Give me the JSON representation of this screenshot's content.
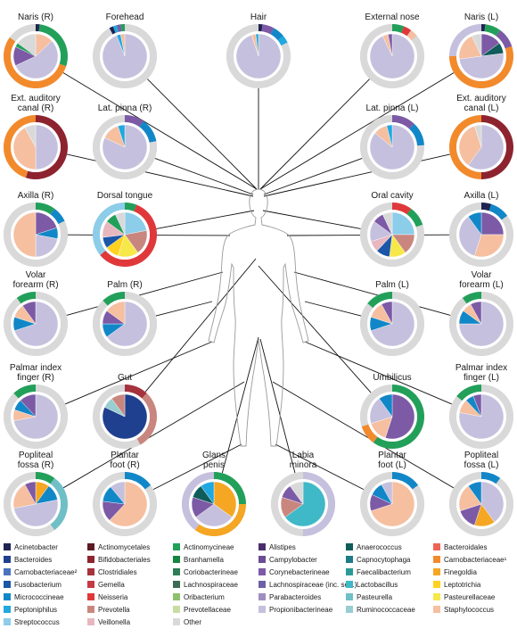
{
  "palette": {
    "Acinetobacter": "#1f2450",
    "Bacteroides": "#1f3f8f",
    "Carnobacteriaceae2": "#4a72c0",
    "Fusobacterium": "#1b56a8",
    "Micrococcineae": "#1287c8",
    "Peptoniphilus": "#20a8e0",
    "Streptococcus": "#8ccde9",
    "Actinomycetales": "#5e1a24",
    "Bifidobacteriales": "#8e2330",
    "Clostridiales": "#a5323d",
    "Gemella": "#c63a45",
    "Neisseria": "#e0383a",
    "Prevotella": "#c9867f",
    "Veillonella": "#e7b7c0",
    "Actinomycineae": "#22a05a",
    "Branhamella": "#15853f",
    "Coriobacterineae": "#2e7d55",
    "Lachnospiraceae": "#3d6a52",
    "Oribacterium": "#8fc06d",
    "Prevotellaceae": "#c9dca2",
    "Other": "#d9d9d9",
    "Alistipes": "#4b2d6e",
    "Campylobacter": "#6b4c93",
    "Corynebacterineae": "#7c5aa6",
    "Lachnospiraceae_inc_sed": "#6f5fa8",
    "Parabacteroides": "#9f8dc2",
    "Propionibacterineae": "#c5c0dd",
    "Anaerococcus": "#0f5c5a",
    "Capnocytophaga": "#1f7b87",
    "Faecalibacterium": "#2b9a96",
    "Lactobacillus": "#3fb8c7",
    "Pasteurella": "#6fbfc7",
    "Ruminococcaceae": "#98cdd2",
    "Bacteroidales": "#ee6454",
    "Carnobacteriaceae1": "#f28a2c",
    "Finegoldia": "#f5a623",
    "Leptotrichia": "#ffd21f",
    "Pasteurellaceae": "#f7e84a",
    "Staphylococcus": "#f5bfa0"
  },
  "legend": {
    "columns": [
      [
        "Acinetobacter",
        "Bacteroides",
        "Carnobacteriaceae²",
        "Fusobacterium",
        "Micrococcineae",
        "Peptoniphilus",
        "Streptococcus"
      ],
      [
        "Actinomycetales",
        "Bifidobacteriales",
        "Clostridiales",
        "Gemella",
        "Neisseria",
        "Prevotella",
        "Veillonella"
      ],
      [
        "Actinomycineae",
        "Branhamella",
        "Coriobacterineae",
        "Lachnospiraceae",
        "Oribacterium",
        "Prevotellaceae",
        "Other"
      ],
      [
        "Alistipes",
        "Campylobacter",
        "Corynebacterineae",
        "Lachnospiraceae (inc. sed.)",
        "Parabacteroides",
        "Propionibacterineae"
      ],
      [
        "Anaerococcus",
        "Capnocytophaga",
        "Faecalibacterium",
        "Lactobacillus",
        "Pasteurella",
        "Ruminococcaceae"
      ],
      [
        "Bacteroidales",
        "Carnobacteriaceae¹",
        "Finegoldia",
        "Leptotrichia",
        "Pasteurellaceae",
        "Staphylococcus"
      ]
    ],
    "color_keys": [
      [
        "Acinetobacter",
        "Bacteroides",
        "Carnobacteriaceae2",
        "Fusobacterium",
        "Micrococcineae",
        "Peptoniphilus",
        "Streptococcus"
      ],
      [
        "Actinomycetales",
        "Bifidobacteriales",
        "Clostridiales",
        "Gemella",
        "Neisseria",
        "Prevotella",
        "Veillonella"
      ],
      [
        "Actinomycineae",
        "Branhamella",
        "Coriobacterineae",
        "Lachnospiraceae",
        "Oribacterium",
        "Prevotellaceae",
        "Other"
      ],
      [
        "Alistipes",
        "Campylobacter",
        "Corynebacterineae",
        "Lachnospiraceae_inc_sed",
        "Parabacteroides",
        "Propionibacterineae"
      ],
      [
        "Anaerococcus",
        "Capnocytophaga",
        "Faecalibacterium",
        "Lactobacillus",
        "Pasteurella",
        "Ruminococcaceae"
      ],
      [
        "Bacteroidales",
        "Carnobacteriaceae1",
        "Finegoldia",
        "Leptotrichia",
        "Pasteurellaceae",
        "Staphylococcus"
      ]
    ]
  },
  "sites": [
    {
      "label": "Naris (R)",
      "pie": [
        [
          "Staphylococcus",
          0.13
        ],
        [
          "Propionibacterineae",
          0.55
        ],
        [
          "Corynebacterineae",
          0.14
        ],
        [
          "Actinomycineae",
          0.03
        ],
        [
          "Other",
          0.15
        ]
      ],
      "ring": [
        [
          "Acinetobacter",
          0.02
        ],
        [
          "Actinomycineae",
          0.28
        ],
        [
          "Carnobacteriaceae1",
          0.55
        ],
        [
          "Other",
          0.15
        ]
      ]
    },
    {
      "label": "Forehead",
      "pie": [
        [
          "Propionibacterineae",
          0.94
        ],
        [
          "Peptoniphilus",
          0.03
        ],
        [
          "Staphylococcus",
          0.03
        ]
      ],
      "ring": [
        [
          "Other",
          0.92
        ],
        [
          "Acinetobacter",
          0.02
        ],
        [
          "Peptoniphilus",
          0.02
        ],
        [
          "Corynebacterineae",
          0.02
        ],
        [
          "Actinomycineae",
          0.02
        ]
      ]
    },
    {
      "label": "Hair",
      "pie": [
        [
          "Propionibacterineae",
          0.95
        ],
        [
          "Staphylococcus",
          0.03
        ],
        [
          "Peptoniphilus",
          0.02
        ]
      ],
      "ring": [
        [
          "Acinetobacter",
          0.02
        ],
        [
          "Corynebacterineae",
          0.06
        ],
        [
          "Micrococcineae",
          0.06
        ],
        [
          "Peptoniphilus",
          0.04
        ],
        [
          "Other",
          0.82
        ]
      ]
    },
    {
      "label": "External nose",
      "pie": [
        [
          "Propionibacterineae",
          0.93
        ],
        [
          "Staphylococcus",
          0.04
        ],
        [
          "Corynebacterineae",
          0.03
        ]
      ],
      "ring": [
        [
          "Actinomycineae",
          0.06
        ],
        [
          "Neisseria",
          0.04
        ],
        [
          "Staphylococcus",
          0.04
        ],
        [
          "Other",
          0.86
        ]
      ]
    },
    {
      "label": "Naris (L)",
      "pie": [
        [
          "Corynebacterineae",
          0.15
        ],
        [
          "Anaerococcus",
          0.08
        ],
        [
          "Propionibacterineae",
          0.5
        ],
        [
          "Staphylococcus",
          0.2
        ],
        [
          "Other",
          0.07
        ]
      ],
      "ring": [
        [
          "Acinetobacter",
          0.02
        ],
        [
          "Actinomycineae",
          0.08
        ],
        [
          "Corynebacterineae",
          0.1
        ],
        [
          "Carnobacteriaceae1",
          0.55
        ],
        [
          "Propionibacterineae",
          0.25
        ]
      ]
    },
    {
      "label": "Ext. auditory canal (R)",
      "pie": [
        [
          "Propionibacterineae",
          0.5
        ],
        [
          "Staphylococcus",
          0.42
        ],
        [
          "Other",
          0.08
        ]
      ],
      "ring": [
        [
          "Bifidobacteriales",
          0.55
        ],
        [
          "Carnobacteriaceae1",
          0.45
        ]
      ]
    },
    {
      "label": "Lat. pinna (R)",
      "pie": [
        [
          "Propionibacterineae",
          0.82
        ],
        [
          "Staphylococcus",
          0.13
        ],
        [
          "Peptoniphilus",
          0.05
        ]
      ],
      "ring": [
        [
          "Corynebacterineae",
          0.1
        ],
        [
          "Micrococcineae",
          0.12
        ],
        [
          "Other",
          0.78
        ]
      ]
    },
    {
      "label": "Lat. pinna (L)",
      "pie": [
        [
          "Propionibacterineae",
          0.86
        ],
        [
          "Staphylococcus",
          0.1
        ],
        [
          "Peptoniphilus",
          0.04
        ]
      ],
      "ring": [
        [
          "Corynebacterineae",
          0.12
        ],
        [
          "Micrococcineae",
          0.12
        ],
        [
          "Other",
          0.76
        ]
      ]
    },
    {
      "label": "Ext. auditory canal (L)",
      "pie": [
        [
          "Propionibacterineae",
          0.6
        ],
        [
          "Staphylococcus",
          0.35
        ],
        [
          "Other",
          0.05
        ]
      ],
      "ring": [
        [
          "Bifidobacteriales",
          0.5
        ],
        [
          "Carnobacteriaceae1",
          0.5
        ]
      ]
    },
    {
      "label": "Axilla (R)",
      "pie": [
        [
          "Corynebacterineae",
          0.2
        ],
        [
          "Micrococcineae",
          0.08
        ],
        [
          "Propionibacterineae",
          0.22
        ],
        [
          "Staphylococcus",
          0.5
        ]
      ],
      "ring": [
        [
          "Actinomycineae",
          0.1
        ],
        [
          "Micrococcineae",
          0.08
        ],
        [
          "Other",
          0.82
        ]
      ]
    },
    {
      "label": "Dorsal tongue",
      "pie": [
        [
          "Streptococcus",
          0.22
        ],
        [
          "Prevotella",
          0.18
        ],
        [
          "Pasteurellaceae",
          0.15
        ],
        [
          "Leptotrichia",
          0.1
        ],
        [
          "Fusobacterium",
          0.08
        ],
        [
          "Veillonella",
          0.12
        ],
        [
          "Actinomycineae",
          0.08
        ],
        [
          "Other",
          0.07
        ]
      ],
      "ring": [
        [
          "Actinomycineae",
          0.06
        ],
        [
          "Neisseria",
          0.58
        ],
        [
          "Streptococcus",
          0.36
        ]
      ]
    },
    {
      "label": "Oral cavity",
      "pie": [
        [
          "Streptococcus",
          0.25
        ],
        [
          "Prevotella",
          0.15
        ],
        [
          "Pasteurellaceae",
          0.12
        ],
        [
          "Fusobacterium",
          0.1
        ],
        [
          "Veillonella",
          0.08
        ],
        [
          "Propionibacterineae",
          0.15
        ],
        [
          "Corynebacterineae",
          0.08
        ],
        [
          "Other",
          0.07
        ]
      ],
      "ring": [
        [
          "Neisseria",
          0.1
        ],
        [
          "Actinomycineae",
          0.1
        ],
        [
          "Other",
          0.8
        ]
      ]
    },
    {
      "label": "Axilla (L)",
      "pie": [
        [
          "Corynebacterineae",
          0.25
        ],
        [
          "Staphylococcus",
          0.3
        ],
        [
          "Propionibacterineae",
          0.35
        ],
        [
          "Micrococcineae",
          0.1
        ]
      ],
      "ring": [
        [
          "Acinetobacter",
          0.05
        ],
        [
          "Micrococcineae",
          0.1
        ],
        [
          "Other",
          0.85
        ]
      ]
    },
    {
      "label": "Volar forearm (R)",
      "pie": [
        [
          "Propionibacterineae",
          0.7
        ],
        [
          "Micrococcineae",
          0.1
        ],
        [
          "Staphylococcus",
          0.1
        ],
        [
          "Corynebacterineae",
          0.1
        ]
      ],
      "ring": [
        [
          "Other",
          0.9
        ],
        [
          "Actinomycineae",
          0.1
        ]
      ]
    },
    {
      "label": "Palm (R)",
      "pie": [
        [
          "Propionibacterineae",
          0.65
        ],
        [
          "Micrococcineae",
          0.1
        ],
        [
          "Corynebacterineae",
          0.1
        ],
        [
          "Staphylococcus",
          0.15
        ]
      ],
      "ring": [
        [
          "Other",
          0.88
        ],
        [
          "Actinomycineae",
          0.12
        ]
      ]
    },
    {
      "label": "Palm (L)",
      "pie": [
        [
          "Propionibacterineae",
          0.7
        ],
        [
          "Micrococcineae",
          0.1
        ],
        [
          "Staphylococcus",
          0.12
        ],
        [
          "Corynebacterineae",
          0.08
        ]
      ],
      "ring": [
        [
          "Other",
          0.86
        ],
        [
          "Actinomycineae",
          0.14
        ]
      ]
    },
    {
      "label": "Volar forearm (L)",
      "pie": [
        [
          "Propionibacterineae",
          0.75
        ],
        [
          "Micrococcineae",
          0.1
        ],
        [
          "Staphylococcus",
          0.07
        ],
        [
          "Corynebacterineae",
          0.08
        ]
      ],
      "ring": [
        [
          "Other",
          0.9
        ],
        [
          "Actinomycineae",
          0.1
        ]
      ]
    },
    {
      "label": "Palmar index finger (R)",
      "pie": [
        [
          "Propionibacterineae",
          0.72
        ],
        [
          "Staphylococcus",
          0.08
        ],
        [
          "Micrococcineae",
          0.08
        ],
        [
          "Corynebacterineae",
          0.12
        ]
      ],
      "ring": [
        [
          "Other",
          0.88
        ],
        [
          "Actinomycineae",
          0.12
        ]
      ]
    },
    {
      "label": "Gut",
      "pie": [
        [
          "Bacteroides",
          0.82
        ],
        [
          "Ruminococcaceae",
          0.08
        ],
        [
          "Prevotella",
          0.1
        ]
      ],
      "ring": [
        [
          "Clostridiales",
          0.12
        ],
        [
          "Prevotella",
          0.3
        ],
        [
          "Other",
          0.58
        ]
      ]
    },
    {
      "label": "Umbilicus",
      "pie": [
        [
          "Corynebacterineae",
          0.55
        ],
        [
          "Staphylococcus",
          0.15
        ],
        [
          "Propionibacterineae",
          0.2
        ],
        [
          "Micrococcineae",
          0.1
        ]
      ],
      "ring": [
        [
          "Actinomycineae",
          0.6
        ],
        [
          "Carnobacteriaceae1",
          0.1
        ],
        [
          "Other",
          0.3
        ]
      ]
    },
    {
      "label": "Palmar index finger (L)",
      "pie": [
        [
          "Propionibacterineae",
          0.78
        ],
        [
          "Staphylococcus",
          0.1
        ],
        [
          "Micrococcineae",
          0.06
        ],
        [
          "Corynebacterineae",
          0.06
        ]
      ],
      "ring": [
        [
          "Other",
          0.86
        ],
        [
          "Actinomycineae",
          0.14
        ]
      ]
    },
    {
      "label": "Popliteal fossa (R)",
      "pie": [
        [
          "Finegoldia",
          0.1
        ],
        [
          "Micrococcineae",
          0.12
        ],
        [
          "Propionibacterineae",
          0.5
        ],
        [
          "Staphylococcus",
          0.2
        ],
        [
          "Corynebacterineae",
          0.08
        ]
      ],
      "ring": [
        [
          "Actinomycineae",
          0.1
        ],
        [
          "Pasteurella",
          0.3
        ],
        [
          "Other",
          0.6
        ]
      ]
    },
    {
      "label": "Plantar foot (R)",
      "pie": [
        [
          "Staphylococcus",
          0.62
        ],
        [
          "Corynebacterineae",
          0.15
        ],
        [
          "Micrococcineae",
          0.12
        ],
        [
          "Propionibacterineae",
          0.11
        ]
      ],
      "ring": [
        [
          "Micrococcineae",
          0.15
        ],
        [
          "Other",
          0.85
        ]
      ]
    },
    {
      "label": "Glans penis",
      "pie": [
        [
          "Finegoldia",
          0.35
        ],
        [
          "Propionibacterineae",
          0.3
        ],
        [
          "Corynebacterineae",
          0.15
        ],
        [
          "Anaerococcus",
          0.1
        ],
        [
          "Peptoniphilus",
          0.1
        ]
      ],
      "ring": [
        [
          "Actinomycineae",
          0.25
        ],
        [
          "Finegoldia",
          0.35
        ],
        [
          "Propionibacterineae",
          0.4
        ]
      ]
    },
    {
      "label": "Labia minora",
      "pie": [
        [
          "Lactobacillus",
          0.65
        ],
        [
          "Prevotella",
          0.15
        ],
        [
          "Corynebacterineae",
          0.1
        ],
        [
          "Other",
          0.1
        ]
      ],
      "ring": [
        [
          "Propionibacterineae",
          0.5
        ],
        [
          "Other",
          0.5
        ]
      ]
    },
    {
      "label": "Plantar foot (L)",
      "pie": [
        [
          "Staphylococcus",
          0.7
        ],
        [
          "Corynebacterineae",
          0.12
        ],
        [
          "Micrococcineae",
          0.1
        ],
        [
          "Propionibacterineae",
          0.08
        ]
      ],
      "ring": [
        [
          "Micrococcineae",
          0.15
        ],
        [
          "Other",
          0.85
        ]
      ]
    },
    {
      "label": "Popliteal fossa (L)",
      "pie": [
        [
          "Propionibacterineae",
          0.4
        ],
        [
          "Finegoldia",
          0.15
        ],
        [
          "Corynebacterineae",
          0.15
        ],
        [
          "Staphylococcus",
          0.2
        ],
        [
          "Micrococcineae",
          0.1
        ]
      ],
      "ring": [
        [
          "Micrococcineae",
          0.1
        ],
        [
          "Other",
          0.9
        ]
      ]
    }
  ]
}
